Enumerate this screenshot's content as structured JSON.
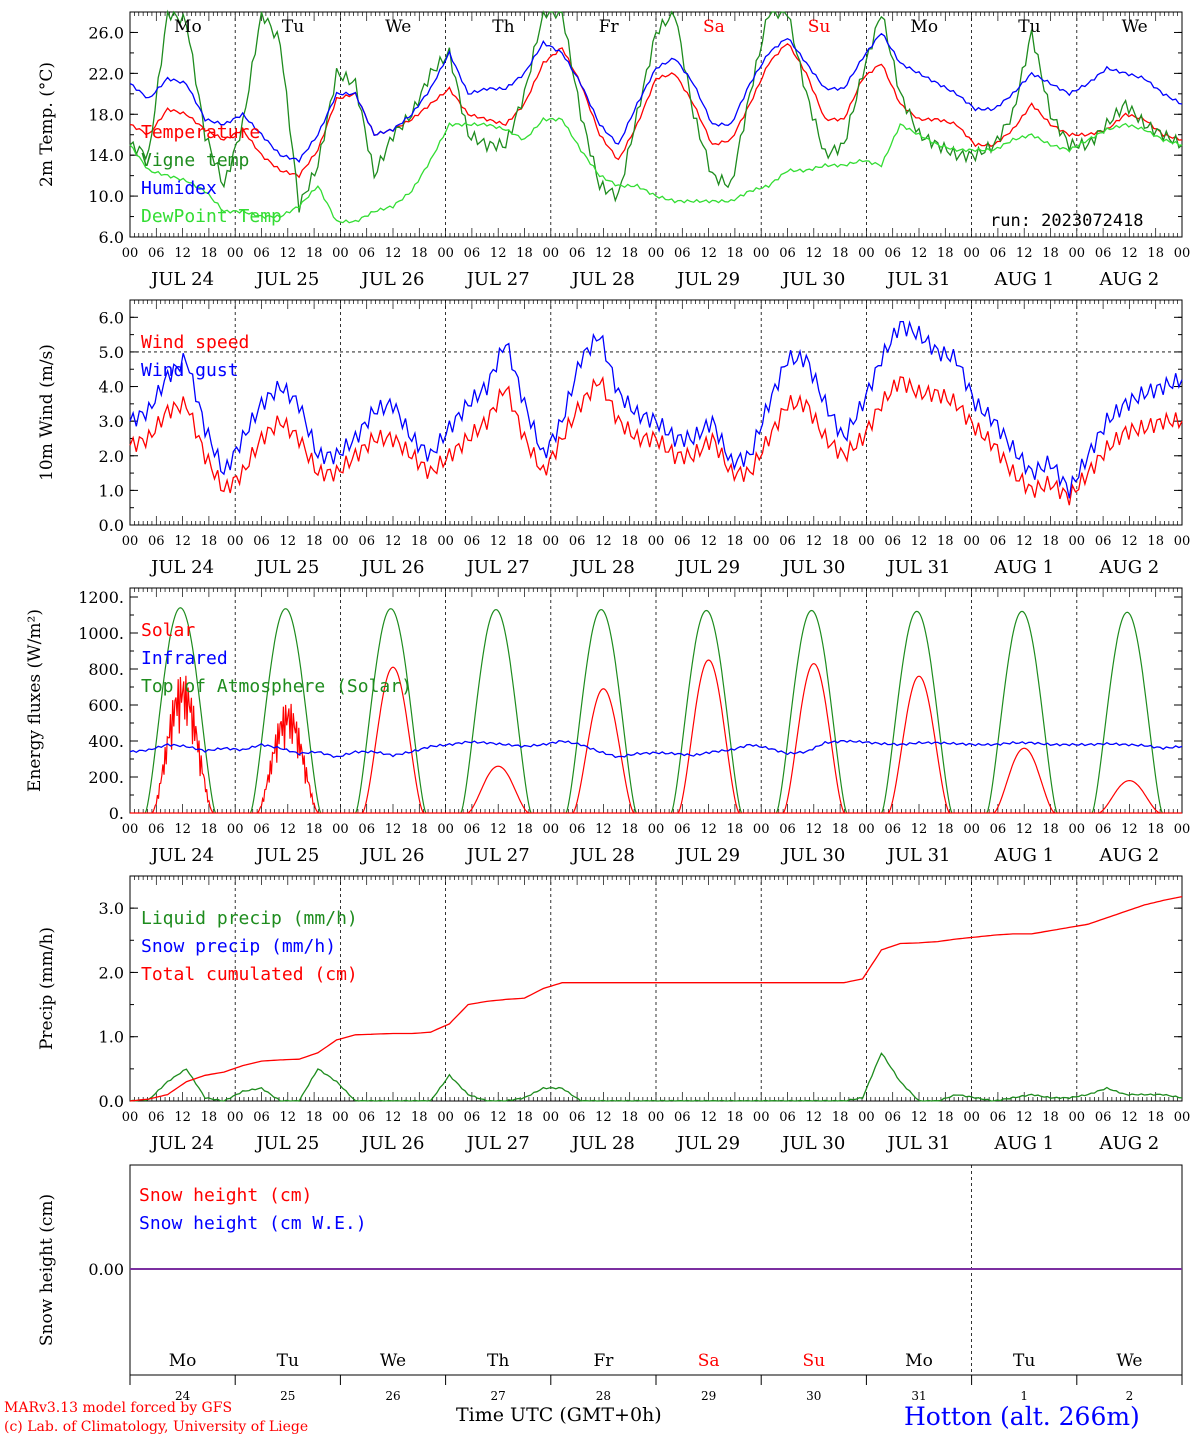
{
  "run_label": "run: 2023072418",
  "footer": {
    "credit_line1": "MARv3.13 model forced by GFS",
    "credit_line2": "(c) Lab. of Climatology, University of Liege",
    "time_label": "Time UTC (GMT+0h)",
    "station": "Hotton (alt. 266m)"
  },
  "colors": {
    "red": "#ff0000",
    "green": "#1e8c1e",
    "blue": "#0000ff",
    "lightgreen": "#33dd33",
    "purple": "#7b2fa0"
  },
  "days": [
    {
      "dow": "Mo",
      "date": "JUL 24",
      "num": "24",
      "weekend": false
    },
    {
      "dow": "Tu",
      "date": "JUL 25",
      "num": "25",
      "weekend": false
    },
    {
      "dow": "We",
      "date": "JUL 26",
      "num": "26",
      "weekend": false
    },
    {
      "dow": "Th",
      "date": "JUL 27",
      "num": "27",
      "weekend": false
    },
    {
      "dow": "Fr",
      "date": "JUL 28",
      "num": "28",
      "weekend": false
    },
    {
      "dow": "Sa",
      "date": "JUL 29",
      "num": "29",
      "weekend": true
    },
    {
      "dow": "Su",
      "date": "JUL 30",
      "num": "30",
      "weekend": true
    },
    {
      "dow": "Mo",
      "date": "JUL 31",
      "num": "31",
      "weekend": false
    },
    {
      "dow": "Tu",
      "date": "AUG  1",
      "num": "1",
      "weekend": false
    },
    {
      "dow": "We",
      "date": "AUG  2",
      "num": "2",
      "weekend": false
    }
  ],
  "hour_ticks": [
    "00",
    "06",
    "12",
    "18"
  ],
  "chart_data": [
    {
      "type": "line",
      "ylabel": "2m Temp. (°C)",
      "ylim": [
        6,
        28
      ],
      "yticks": [
        "6.0",
        "10.0",
        "14.0",
        "18.0",
        "22.0",
        "26.0"
      ],
      "x_hours_step": 6,
      "series": [
        {
          "name": "Temperature",
          "color": "#ff0000",
          "values": [
            17,
            16,
            18.5,
            18,
            16.5,
            15.5,
            16.5,
            14,
            12.5,
            12,
            14.5,
            19.5,
            20,
            16,
            16.5,
            17.5,
            19,
            20.5,
            18,
            17.5,
            17,
            19,
            23,
            24.5,
            21,
            16,
            13.5,
            17,
            21.5,
            22,
            19,
            15,
            15.5,
            19,
            23,
            25,
            22,
            17.5,
            17.5,
            21.5,
            23,
            19,
            17.5,
            17.5,
            17,
            15,
            15,
            16.5,
            19,
            17,
            16,
            16,
            16.5,
            18,
            17.5,
            16,
            15.5
          ]
        },
        {
          "name": "Vigne temp",
          "color": "#1e8c1e",
          "values": [
            15,
            14,
            28,
            27,
            16,
            11,
            17,
            28,
            25,
            9,
            13,
            22,
            21,
            12,
            16,
            18,
            22,
            24,
            16,
            15,
            15,
            20,
            28,
            28,
            18,
            11,
            10,
            18,
            26,
            28,
            18,
            12,
            11,
            20,
            28,
            28,
            20,
            14,
            15,
            22,
            28,
            20,
            16,
            15,
            14,
            14,
            15,
            18,
            26,
            18,
            15,
            15,
            17,
            19,
            17,
            16,
            15
          ]
        },
        {
          "name": "Humidex",
          "color": "#0000ff",
          "values": [
            21,
            19.5,
            21.5,
            21,
            17.5,
            17,
            18,
            16,
            14,
            13.5,
            16,
            20,
            20,
            16,
            16.5,
            18,
            20.5,
            24,
            20,
            20.5,
            20.5,
            22,
            25,
            24,
            21,
            17,
            15,
            19,
            22.5,
            23.5,
            21,
            17,
            17,
            21,
            24,
            25.5,
            23,
            20.5,
            20.5,
            23.5,
            26,
            23,
            22,
            21,
            20,
            18.5,
            18.5,
            20,
            22,
            21,
            20,
            21,
            22.5,
            22,
            21.5,
            20,
            19
          ]
        },
        {
          "name": "DewPoint Temp",
          "color": "#33dd33",
          "values": [
            15,
            12.5,
            12,
            11.5,
            10.5,
            8.5,
            8.5,
            8,
            8,
            9,
            11,
            7.5,
            7.5,
            8.5,
            9,
            10.5,
            13.5,
            17,
            17,
            17,
            16.5,
            15.5,
            17.5,
            17.5,
            14.5,
            12,
            11,
            11,
            10,
            9.5,
            9.5,
            9.5,
            9.5,
            10.5,
            11,
            12.5,
            12.5,
            13,
            13,
            13.5,
            13,
            17,
            16,
            15,
            14.5,
            14.5,
            14.5,
            15.5,
            16,
            15,
            14.5,
            15.5,
            16.5,
            17,
            16.5,
            15.5,
            15
          ]
        }
      ]
    },
    {
      "type": "line",
      "ylabel": "10m Wind (m/s)",
      "ylim": [
        0,
        6.5
      ],
      "yticks": [
        "0.0",
        "1.0",
        "2.0",
        "3.0",
        "4.0",
        "5.0",
        "6.0"
      ],
      "x_hours_step": 6,
      "series": [
        {
          "name": "Wind speed",
          "color": "#ff0000",
          "values": [
            2.3,
            2.5,
            3.3,
            3.5,
            2,
            1,
            1.5,
            2.5,
            3,
            2.5,
            1.5,
            1.5,
            2,
            2.5,
            2.5,
            2,
            1.5,
            2,
            2.5,
            3,
            4,
            2.5,
            1.5,
            2.5,
            3.5,
            4.2,
            3,
            2.5,
            2.5,
            2,
            2,
            2.5,
            1.5,
            1.5,
            2.5,
            3.5,
            3.5,
            2.5,
            2,
            2.5,
            3.5,
            4.2,
            3.8,
            3.8,
            3.5,
            2.8,
            2.3,
            1.5,
            1,
            1.2,
            0.8,
            1.5,
            2.2,
            2.7,
            2.8,
            3,
            3
          ]
        },
        {
          "name": "Wind gust",
          "color": "#0000ff",
          "values": [
            3,
            3.3,
            4.3,
            4.8,
            2.8,
            1.5,
            2.5,
            3.5,
            4,
            3.5,
            2,
            2,
            2.5,
            3.3,
            3.5,
            2.5,
            2,
            2.8,
            3.5,
            4,
            5.3,
            3.5,
            2,
            3,
            4.8,
            5.5,
            3.8,
            3.2,
            3,
            2.5,
            2.5,
            3,
            1.8,
            2,
            3.5,
            4.8,
            4.8,
            3.5,
            2.5,
            3.5,
            4.8,
            5.8,
            5.5,
            5,
            4.8,
            3.5,
            3,
            2.2,
            1.5,
            1.8,
            1,
            2,
            3,
            3.5,
            3.8,
            4,
            4.2
          ]
        }
      ]
    },
    {
      "type": "line",
      "ylabel": "Energy fluxes (W/m²)",
      "ylim": [
        0,
        1250
      ],
      "yticks": [
        "0.",
        "200.",
        "400.",
        "600.",
        "800.",
        "1000.",
        "1200."
      ],
      "x_hours_step": 6,
      "series": [
        {
          "name": "Solar",
          "color": "#ff0000",
          "peaks": [
            780,
            620,
            810,
            260,
            690,
            850,
            830,
            760,
            360,
            180
          ]
        },
        {
          "name": "Infrared",
          "color": "#0000ff",
          "values": [
            340,
            350,
            380,
            370,
            345,
            360,
            350,
            380,
            360,
            330,
            340,
            310,
            340,
            340,
            320,
            340,
            370,
            380,
            395,
            390,
            380,
            370,
            380,
            400,
            380,
            340,
            310,
            330,
            335,
            330,
            320,
            340,
            350,
            380,
            360,
            330,
            340,
            390,
            400,
            395,
            385,
            380,
            390,
            390,
            385,
            380,
            380,
            390,
            390,
            380,
            380,
            380,
            385,
            380,
            375,
            360,
            370
          ]
        },
        {
          "name": "Top of Atmosphere (Solar)",
          "color": "#1e8c1e",
          "peaks": [
            1140,
            1135,
            1135,
            1130,
            1130,
            1125,
            1125,
            1120,
            1120,
            1115
          ]
        }
      ]
    },
    {
      "type": "line",
      "ylabel": "Precip (mm/h)",
      "ylim": [
        0,
        3.5
      ],
      "yticks": [
        "0.0",
        "1.0",
        "2.0",
        "3.0"
      ],
      "x_hours_step": 6,
      "series": [
        {
          "name": "Liquid precip (mm/h)",
          "color": "#1e8c1e",
          "values": [
            0,
            0.02,
            0.3,
            0.5,
            0.05,
            0,
            0.15,
            0.2,
            0,
            0,
            0.5,
            0.3,
            0,
            0,
            0,
            0,
            0,
            0.4,
            0.1,
            0,
            0,
            0.05,
            0.2,
            0.2,
            0,
            0,
            0,
            0,
            0,
            0,
            0,
            0,
            0,
            0,
            0,
            0,
            0,
            0,
            0,
            0.05,
            0.75,
            0.3,
            0,
            0,
            0.1,
            0.05,
            0,
            0.05,
            0.1,
            0.05,
            0.05,
            0.1,
            0.2,
            0.1,
            0.1,
            0.1,
            0.05
          ]
        },
        {
          "name": "Snow precip (mm/h)",
          "color": "#0000ff",
          "values": []
        },
        {
          "name": "Total cumulated (cm)",
          "color": "#ff0000",
          "values": [
            0,
            0.03,
            0.1,
            0.3,
            0.4,
            0.45,
            0.55,
            0.62,
            0.64,
            0.65,
            0.75,
            0.95,
            1.03,
            1.04,
            1.05,
            1.05,
            1.07,
            1.2,
            1.5,
            1.55,
            1.58,
            1.6,
            1.75,
            1.84,
            1.84,
            1.84,
            1.84,
            1.84,
            1.84,
            1.84,
            1.84,
            1.84,
            1.84,
            1.84,
            1.84,
            1.84,
            1.84,
            1.84,
            1.84,
            1.9,
            2.35,
            2.45,
            2.46,
            2.48,
            2.52,
            2.55,
            2.58,
            2.6,
            2.6,
            2.65,
            2.7,
            2.75,
            2.85,
            2.95,
            3.05,
            3.12,
            3.18
          ]
        }
      ]
    },
    {
      "type": "line",
      "ylabel": "Snow height (cm)",
      "yticks": [
        "0.00"
      ],
      "series": [
        {
          "name": "Snow height (cm)",
          "color": "#ff0000",
          "values": [
            0,
            0
          ]
        },
        {
          "name": "Snow height (cm W.E.)",
          "color": "#0000ff",
          "values": [
            0,
            0
          ]
        }
      ]
    }
  ]
}
